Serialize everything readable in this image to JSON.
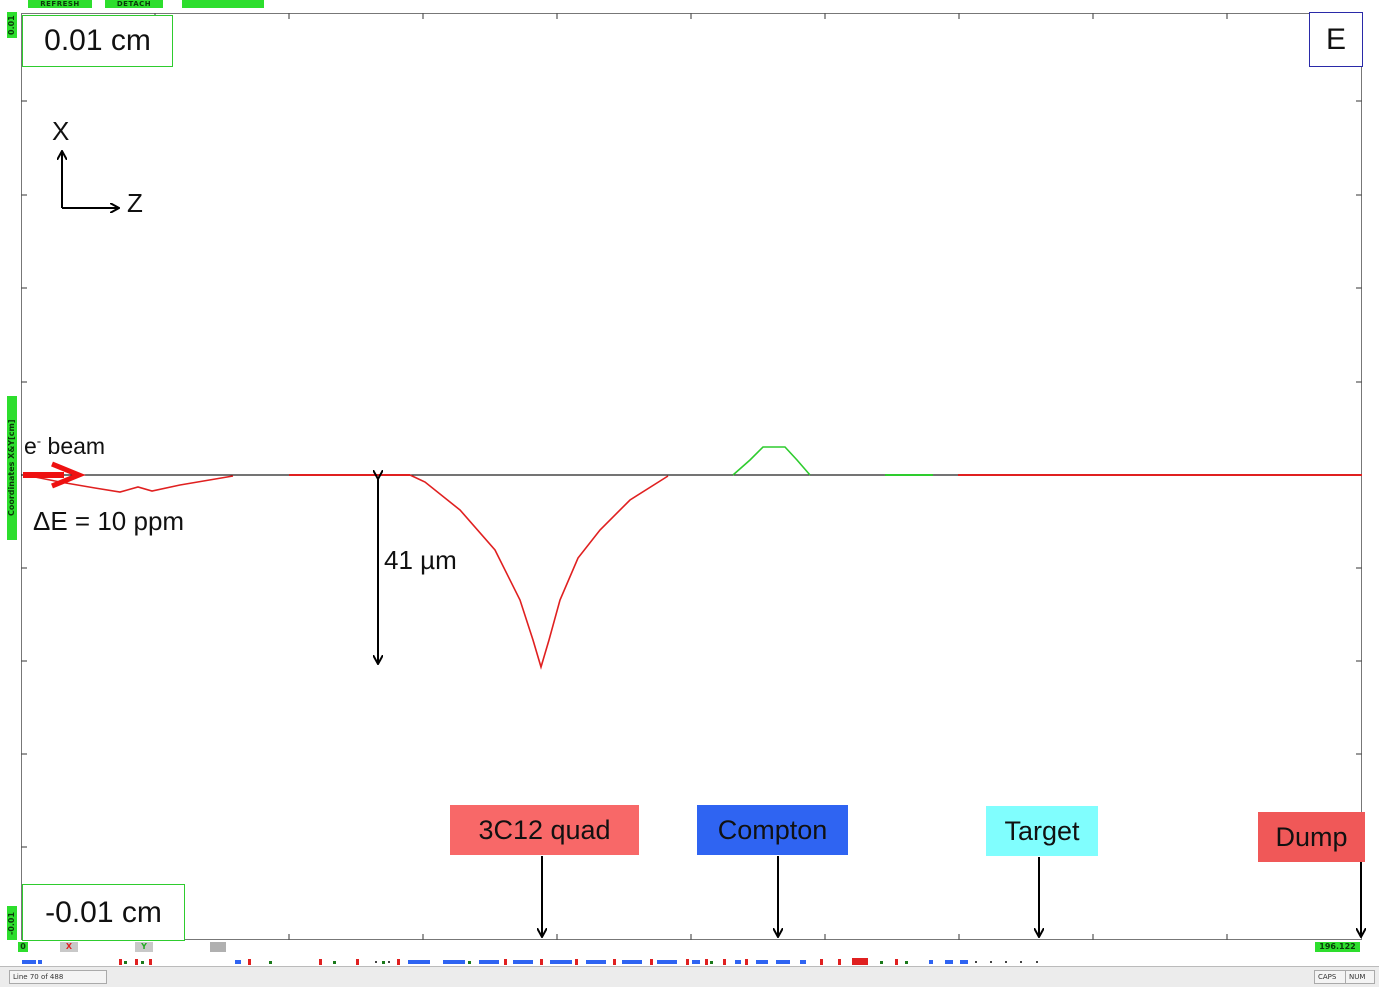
{
  "toolbar": {
    "refresh_label": "REFRESH",
    "detach_label": "DETACH"
  },
  "axis": {
    "top_value": "0.01",
    "bottom_value": "-0.01",
    "y_title": "Coordinates X&Y[cm]",
    "x_start": "0",
    "x_end": "196.122"
  },
  "scale": {
    "top": "0.01 cm",
    "bottom": "-0.01 cm"
  },
  "corner_label": "E",
  "axes_indicator": {
    "x": "X",
    "z": "Z"
  },
  "beam": {
    "label_prefix": "e",
    "label_sup": "-",
    "label_rest": " beam",
    "delta_e": "ΔE = 10 ppm"
  },
  "dimension_label": "41 µm",
  "markers": [
    {
      "label": "3C12 quad",
      "color": "#f86868"
    },
    {
      "label": "Compton",
      "color": "#2f64f2"
    },
    {
      "label": "Target",
      "color": "#80fefe"
    },
    {
      "label": "Dump",
      "color": "#f05858"
    }
  ],
  "plane_tags": {
    "x": "X",
    "y": "Y"
  },
  "status": {
    "line_info": "Line 70 of 488",
    "caps": "CAPS",
    "num": "NUM"
  },
  "colors": {
    "accent_green": "#2dde2d",
    "trace_red": "#e02020",
    "trace_green": "#2ecc2e"
  }
}
